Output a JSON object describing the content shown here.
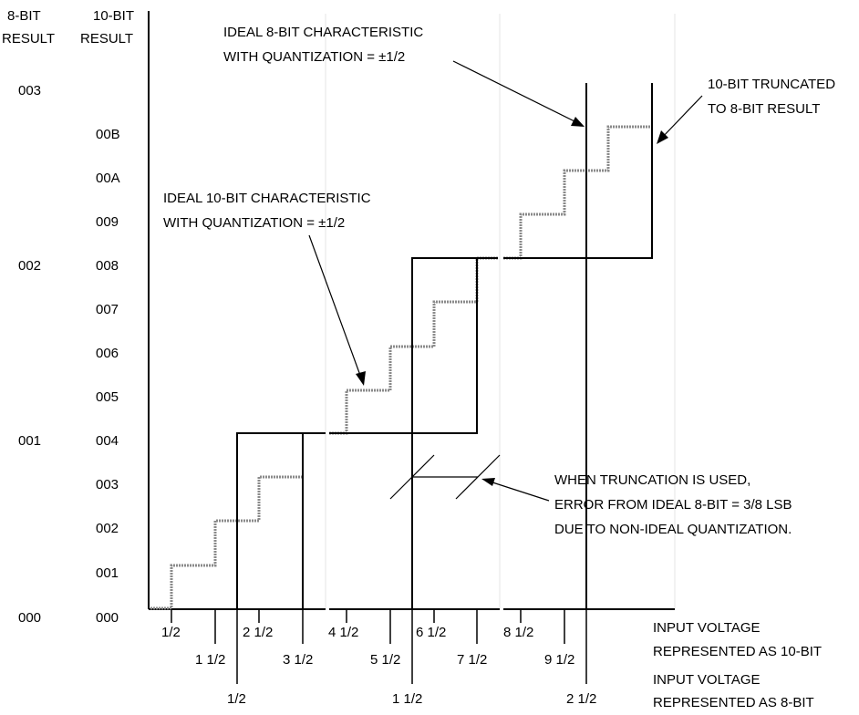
{
  "axes": {
    "col_8bit_header": [
      "8-BIT",
      "RESULT"
    ],
    "col_10bit_header": [
      "10-BIT",
      "RESULT"
    ]
  },
  "y_labels_10bit": [
    "000",
    "001",
    "002",
    "003",
    "004",
    "005",
    "006",
    "007",
    "008",
    "009",
    "00A",
    "00B"
  ],
  "y_labels_8bit": [
    "000",
    "001",
    "002",
    "003"
  ],
  "x_labels_10bit_upper": [
    "1/2",
    "2 1/2",
    "4 1/2",
    "6 1/2",
    "8 1/2"
  ],
  "x_labels_10bit_lower": [
    "1 1/2",
    "3 1/2",
    "5 1/2",
    "7 1/2",
    "9 1/2"
  ],
  "x_labels_8bit": [
    "1/2",
    "1 1/2",
    "2 1/2"
  ],
  "x_caption_10bit": [
    "INPUT VOLTAGE",
    "REPRESENTED AS 10-BIT"
  ],
  "x_caption_8bit": [
    "INPUT VOLTAGE",
    "REPRESENTED AS 8-BIT"
  ],
  "annotations": {
    "ideal_8bit": [
      "IDEAL 8-BIT CHARACTERISTIC",
      "WITH QUANTIZATION = ±1/2"
    ],
    "ideal_10bit": [
      "IDEAL 10-BIT CHARACTERISTIC",
      "WITH QUANTIZATION = ±1/2"
    ],
    "truncated": [
      "10-BIT TRUNCATED",
      "TO 8-BIT RESULT"
    ],
    "truncation_error": [
      "WHEN TRUNCATION IS USED,",
      "ERROR FROM IDEAL 8-BIT = 3/8 LSB",
      "DUE TO NON-IDEAL QUANTIZATION."
    ]
  },
  "colors": {
    "ideal_8bit": "#000000",
    "ideal_10bit": "#8a8a8a"
  }
}
